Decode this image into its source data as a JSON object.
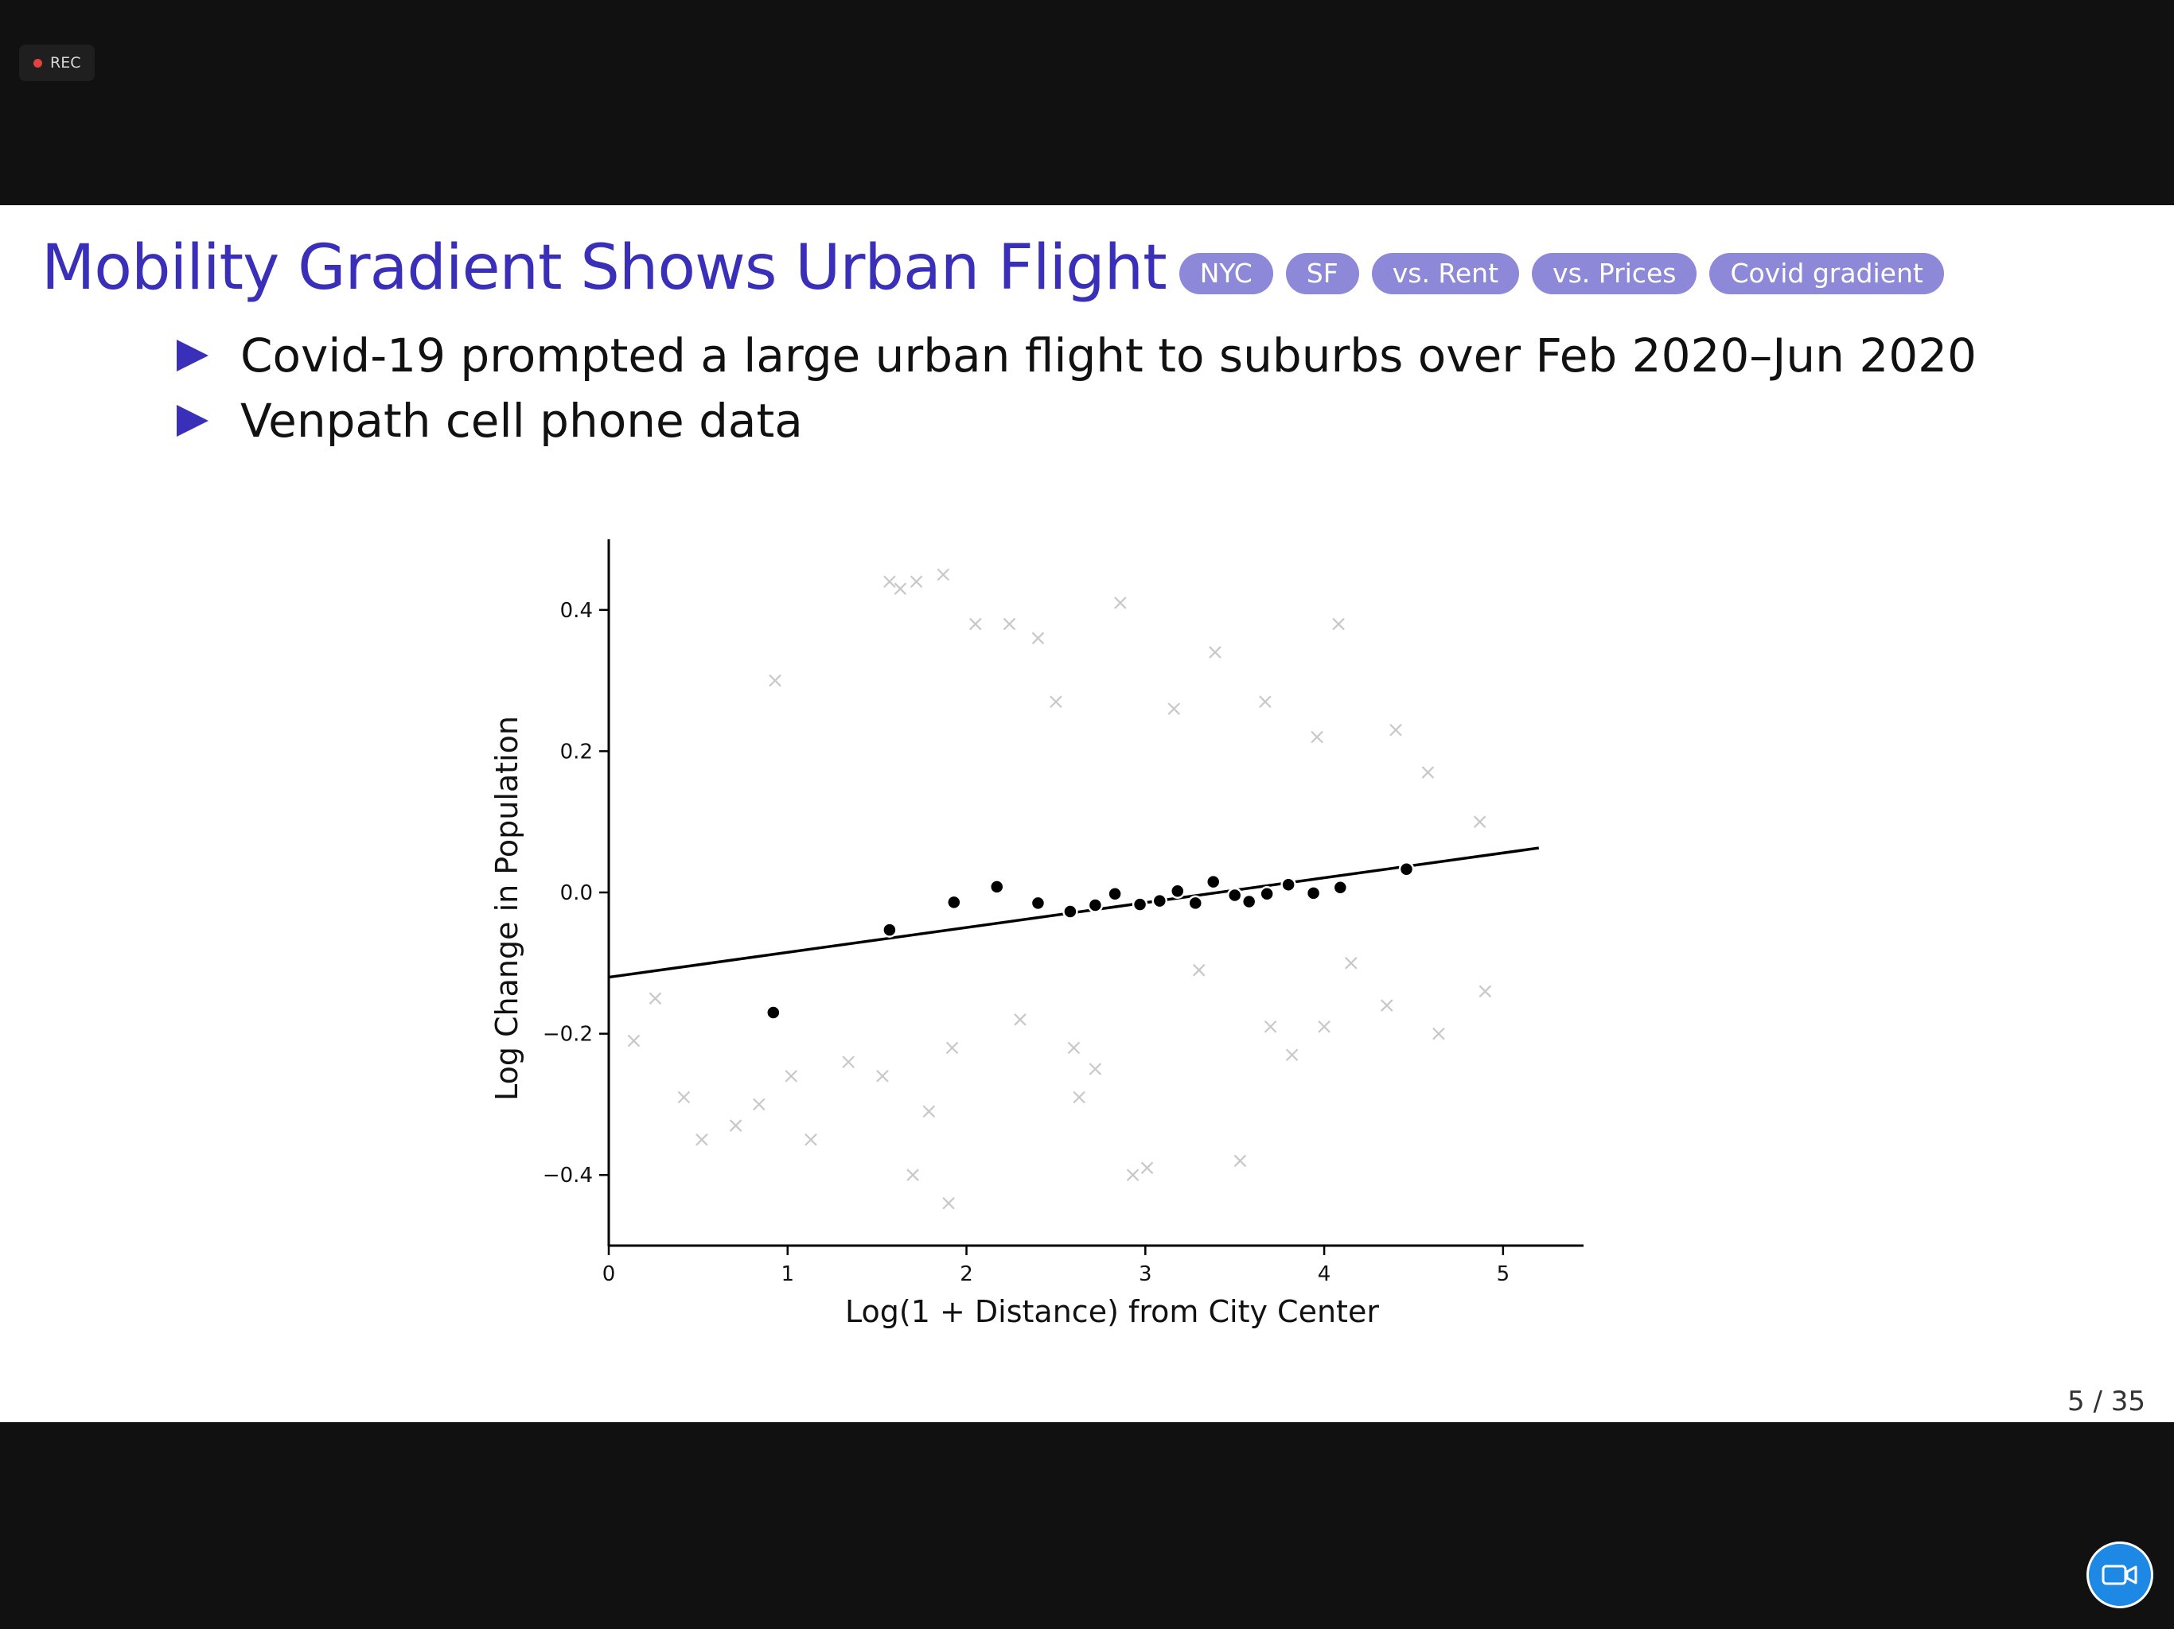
{
  "recording": {
    "label": "REC"
  },
  "slide": {
    "title": "Mobility Gradient Shows Urban Flight",
    "tags": [
      "NYC",
      "SF",
      "vs. Rent",
      "vs. Prices",
      "Covid gradient"
    ],
    "bullets": [
      "Covid-19 prompted a large urban flight to suburbs over Feb 2020–Jun 2020",
      "Venpath cell phone data"
    ],
    "page": "5 / 35"
  },
  "colors": {
    "title": "#3a2fb8",
    "pill": "#8e88d8",
    "camera": "#1e88e5",
    "rec": "#e0433e"
  },
  "icons": {
    "record": "record-dot-icon",
    "camera": "video-camera-icon",
    "bullet": "triangle-bullet-icon"
  },
  "chart_data": {
    "type": "scatter",
    "title": "",
    "xlabel": "Log(1 + Distance) from City Center",
    "ylabel": "Log Change in Population",
    "xlim": [
      0,
      5.45
    ],
    "ylim": [
      -0.5,
      0.5
    ],
    "xticks": [
      0,
      1,
      2,
      3,
      4,
      5
    ],
    "xtick_labels": [
      "0",
      "1",
      "2",
      "3",
      "4",
      "5"
    ],
    "yticks": [
      -0.4,
      -0.2,
      0.0,
      0.2,
      0.4
    ],
    "ytick_labels": [
      "−0.4",
      "−0.2",
      "0.0",
      "0.2",
      "0.4"
    ],
    "grid": false,
    "series": [
      {
        "kind": "binned_means",
        "marker": "circle",
        "color": "#000000",
        "x": [
          0.92,
          1.57,
          1.93,
          2.17,
          2.4,
          2.58,
          2.72,
          2.83,
          2.97,
          3.08,
          3.18,
          3.28,
          3.38,
          3.5,
          3.58,
          3.68,
          3.8,
          3.94,
          4.09,
          4.46
        ],
        "y": [
          -0.17,
          -0.053,
          -0.014,
          0.008,
          -0.015,
          -0.027,
          -0.018,
          -0.002,
          -0.017,
          -0.012,
          0.002,
          -0.015,
          0.015,
          -0.004,
          -0.013,
          -0.002,
          0.011,
          -0.001,
          0.007,
          0.033
        ]
      },
      {
        "kind": "fit_line",
        "color": "#000000",
        "x": [
          0,
          5.2
        ],
        "y": [
          -0.12,
          0.063
        ]
      },
      {
        "kind": "raw_observations",
        "marker": "x",
        "color": "#9a9a9a",
        "x": [
          0.93,
          1.57,
          1.63,
          1.72,
          1.87,
          2.05,
          2.24,
          2.4,
          2.5,
          2.86,
          3.16,
          3.39,
          3.67,
          3.96,
          4.08,
          4.4,
          4.58,
          4.87,
          0.14,
          0.26,
          0.42,
          0.52,
          0.71,
          0.84,
          1.02,
          1.13,
          1.34,
          1.53,
          1.79,
          1.92,
          2.63,
          2.72,
          2.93,
          3.01,
          3.53,
          3.82,
          4.0,
          4.35,
          4.64,
          4.9,
          1.7,
          1.9,
          2.3,
          2.6,
          3.3,
          3.7,
          4.15
        ],
        "y": [
          0.3,
          0.44,
          0.43,
          0.44,
          0.45,
          0.38,
          0.38,
          0.36,
          0.27,
          0.41,
          0.26,
          0.34,
          0.27,
          0.22,
          0.38,
          0.23,
          0.17,
          0.1,
          -0.21,
          -0.15,
          -0.29,
          -0.35,
          -0.33,
          -0.3,
          -0.26,
          -0.35,
          -0.24,
          -0.26,
          -0.31,
          -0.22,
          -0.29,
          -0.25,
          -0.4,
          -0.39,
          -0.38,
          -0.23,
          -0.19,
          -0.16,
          -0.2,
          -0.14,
          -0.4,
          -0.44,
          -0.18,
          -0.22,
          -0.11,
          -0.19,
          -0.1
        ]
      }
    ]
  }
}
